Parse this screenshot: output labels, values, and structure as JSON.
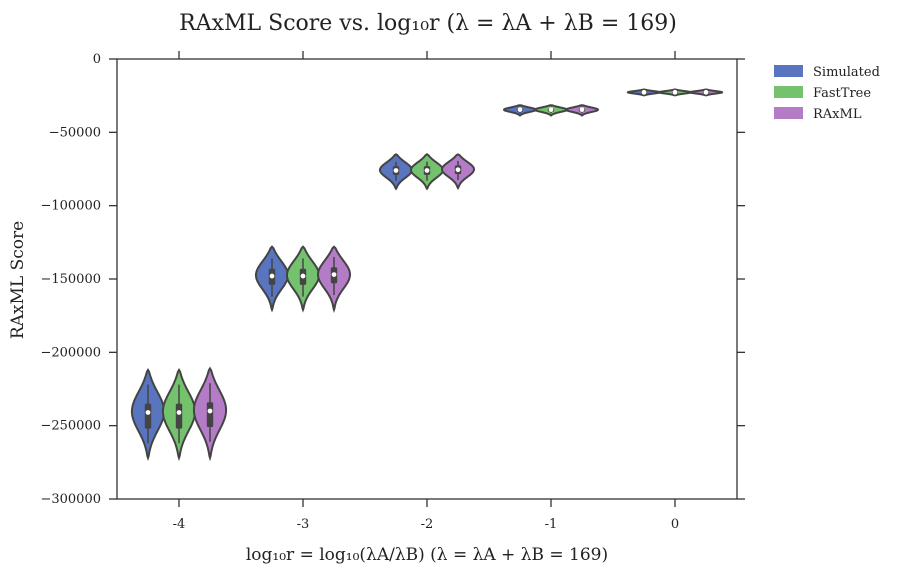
{
  "chart_data": {
    "type": "violin",
    "title": "RAxML Score vs. log₁₀r (λ = λA + λB = 169)",
    "xlabel": "log₁₀r = log₁₀(λA/λB) (λ = λA + λB = 169)",
    "ylabel": "RAxML Score",
    "categories": [
      "-4",
      "-3",
      "-2",
      "-1",
      "0"
    ],
    "yticks": [
      0,
      -50000,
      -100000,
      -150000,
      -200000,
      -250000,
      -300000
    ],
    "ytick_labels": [
      "0",
      "−50000",
      "−100000",
      "−150000",
      "−200000",
      "−250000",
      "−300000"
    ],
    "ylim": [
      -300000,
      0
    ],
    "legend_position": "outside-top-right",
    "grid": false,
    "series": [
      {
        "name": "Simulated",
        "color": "#5975c0",
        "groups": [
          {
            "min": -272000,
            "max": -212000,
            "q1": -252000,
            "q3": -235000,
            "median": -241000,
            "wlo": -262000,
            "whi": -222000,
            "mode": -240000
          },
          {
            "min": -171000,
            "max": -128000,
            "q1": -154000,
            "q3": -143000,
            "median": -148000,
            "wlo": -162000,
            "whi": -136000,
            "mode": -147000
          },
          {
            "min": -88500,
            "max": -65000,
            "q1": -79000,
            "q3": -73000,
            "median": -76000,
            "wlo": -83000,
            "whi": -70000,
            "mode": -75500
          },
          {
            "min": -38500,
            "max": -31500,
            "q1": -36000,
            "q3": -33500,
            "median": -34500,
            "wlo": -37000,
            "whi": -32500,
            "mode": -34500
          },
          {
            "min": -24800,
            "max": -20800,
            "q1": -23500,
            "q3": -22000,
            "median": -22700,
            "wlo": -24000,
            "whi": -21500,
            "mode": -22700
          }
        ]
      },
      {
        "name": "FastTree",
        "color": "#74c16e",
        "groups": [
          {
            "min": -272000,
            "max": -212000,
            "q1": -252000,
            "q3": -235000,
            "median": -241000,
            "wlo": -262000,
            "whi": -222000,
            "mode": -240000
          },
          {
            "min": -171000,
            "max": -128000,
            "q1": -154000,
            "q3": -143000,
            "median": -148000,
            "wlo": -162000,
            "whi": -136000,
            "mode": -147000
          },
          {
            "min": -88500,
            "max": -65000,
            "q1": -79000,
            "q3": -73000,
            "median": -76000,
            "wlo": -83000,
            "whi": -70000,
            "mode": -75500
          },
          {
            "min": -38500,
            "max": -31500,
            "q1": -36000,
            "q3": -33500,
            "median": -34500,
            "wlo": -37000,
            "whi": -32500,
            "mode": -34500
          },
          {
            "min": -24800,
            "max": -20800,
            "q1": -23500,
            "q3": -22000,
            "median": -22700,
            "wlo": -24000,
            "whi": -21500,
            "mode": -22700
          }
        ]
      },
      {
        "name": "RAxML",
        "color": "#b47cc7",
        "groups": [
          {
            "min": -272000,
            "max": -211000,
            "q1": -251000,
            "q3": -234000,
            "median": -240000,
            "wlo": -261000,
            "whi": -221000,
            "mode": -239000
          },
          {
            "min": -171000,
            "max": -128000,
            "q1": -153000,
            "q3": -142000,
            "median": -147000,
            "wlo": -161000,
            "whi": -135000,
            "mode": -146500
          },
          {
            "min": -88000,
            "max": -65000,
            "q1": -78500,
            "q3": -72500,
            "median": -75500,
            "wlo": -82500,
            "whi": -69500,
            "mode": -75000
          },
          {
            "min": -38500,
            "max": -31500,
            "q1": -36000,
            "q3": -33500,
            "median": -34500,
            "wlo": -37000,
            "whi": -32500,
            "mode": -34500
          },
          {
            "min": -24800,
            "max": -20800,
            "q1": -23500,
            "q3": -22000,
            "median": -22700,
            "wlo": -24000,
            "whi": -21500,
            "mode": -22700
          }
        ]
      }
    ]
  }
}
